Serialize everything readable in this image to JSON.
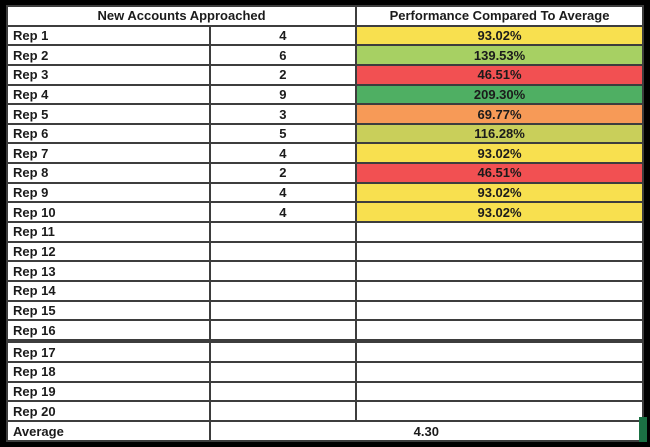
{
  "chart_data": {
    "type": "table",
    "header": {
      "accounts": "New Accounts Approached",
      "performance": "Performance Compared To Average"
    },
    "rows": [
      {
        "name": "Rep 1",
        "accounts": "4",
        "performance": "93.02%",
        "color": "#F8E04F"
      },
      {
        "name": "Rep 2",
        "accounts": "6",
        "performance": "139.53%",
        "color": "#A7D063"
      },
      {
        "name": "Rep 3",
        "accounts": "2",
        "performance": "46.51%",
        "color": "#F25052"
      },
      {
        "name": "Rep 4",
        "accounts": "9",
        "performance": "209.30%",
        "color": "#4FAF63"
      },
      {
        "name": "Rep 5",
        "accounts": "3",
        "performance": "69.77%",
        "color": "#F79A57"
      },
      {
        "name": "Rep 6",
        "accounts": "5",
        "performance": "116.28%",
        "color": "#C9CF5A"
      },
      {
        "name": "Rep 7",
        "accounts": "4",
        "performance": "93.02%",
        "color": "#F8E04F"
      },
      {
        "name": "Rep 8",
        "accounts": "2",
        "performance": "46.51%",
        "color": "#F25052"
      },
      {
        "name": "Rep 9",
        "accounts": "4",
        "performance": "93.02%",
        "color": "#F8E04F"
      },
      {
        "name": "Rep 10",
        "accounts": "4",
        "performance": "93.02%",
        "color": "#F8E04F"
      },
      {
        "name": "Rep 11",
        "accounts": "",
        "performance": "",
        "color": ""
      },
      {
        "name": "Rep 12",
        "accounts": "",
        "performance": "",
        "color": ""
      },
      {
        "name": "Rep 13",
        "accounts": "",
        "performance": "",
        "color": ""
      },
      {
        "name": "Rep 14",
        "accounts": "",
        "performance": "",
        "color": ""
      },
      {
        "name": "Rep 15",
        "accounts": "",
        "performance": "",
        "color": ""
      },
      {
        "name": "Rep 16",
        "accounts": "",
        "performance": "",
        "color": ""
      },
      {
        "name": "Rep 17",
        "accounts": "",
        "performance": "",
        "color": ""
      },
      {
        "name": "Rep 18",
        "accounts": "",
        "performance": "",
        "color": ""
      },
      {
        "name": "Rep 19",
        "accounts": "",
        "performance": "",
        "color": ""
      },
      {
        "name": "Rep 20",
        "accounts": "",
        "performance": "",
        "color": ""
      }
    ],
    "footer": {
      "label": "Average",
      "value": "4.30"
    },
    "status_colors": {
      "yellow": "#F8E04F",
      "light_green": "#A7D063",
      "red": "#F25052",
      "green": "#4FAF63",
      "orange": "#F79A57",
      "olive": "#C9CF5A",
      "corner_marker_green": "#1B7144"
    }
  }
}
